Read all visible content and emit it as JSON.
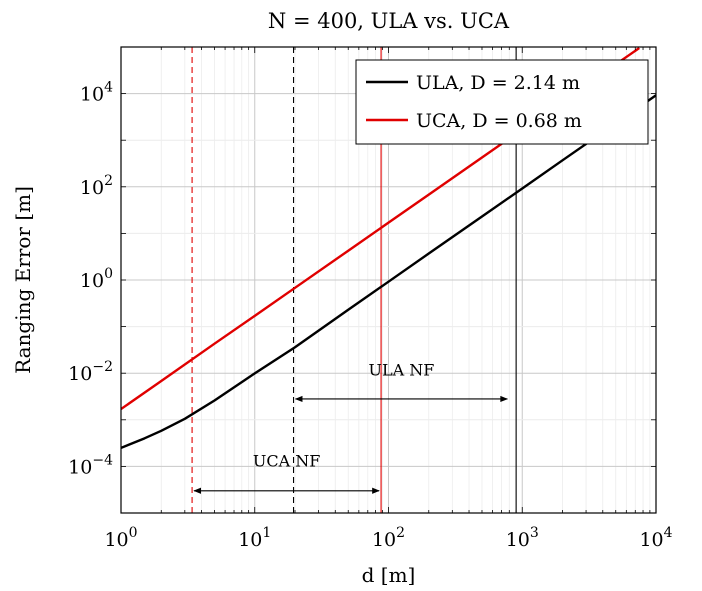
{
  "chart_data": {
    "type": "line",
    "title": "N = 400, ULA vs. UCA",
    "xlabel": "d [m]",
    "ylabel": "Ranging Error [m]",
    "x_scale": "log",
    "y_scale": "log",
    "xlim": [
      1,
      10000
    ],
    "ylim": [
      1e-05,
      100000
    ],
    "x_ticks": [
      {
        "value": 1,
        "base": "10",
        "exp": "0"
      },
      {
        "value": 10,
        "base": "10",
        "exp": "1"
      },
      {
        "value": 100,
        "base": "10",
        "exp": "2"
      },
      {
        "value": 1000,
        "base": "10",
        "exp": "3"
      },
      {
        "value": 10000,
        "base": "10",
        "exp": "4"
      }
    ],
    "y_ticks": [
      {
        "value": 0.0001,
        "base": "10",
        "exp": "−4"
      },
      {
        "value": 0.01,
        "base": "10",
        "exp": "−2"
      },
      {
        "value": 1,
        "base": "10",
        "exp": "0"
      },
      {
        "value": 100,
        "base": "10",
        "exp": "2"
      },
      {
        "value": 10000,
        "base": "10",
        "exp": "4"
      }
    ],
    "grid": true,
    "legend_position": "top-right",
    "series": [
      {
        "name": "ULA, D = 2.14 m",
        "color": "#000000",
        "x": [
          1,
          1.5,
          2,
          3,
          5,
          10,
          20,
          50,
          100,
          200,
          500,
          1000,
          2000,
          5000,
          10000
        ],
        "y": [
          0.00025,
          0.0004,
          0.00058,
          0.00105,
          0.0026,
          0.0099,
          0.036,
          0.23,
          0.92,
          3.7,
          23,
          92,
          370,
          2300,
          9200
        ]
      },
      {
        "name": "UCA, D = 0.68 m",
        "color": "#e00000",
        "x": [
          1,
          2,
          5,
          10,
          20,
          50,
          100,
          200,
          500,
          1000,
          2000,
          5000,
          7500
        ],
        "y": [
          0.0017,
          0.0068,
          0.043,
          0.17,
          0.68,
          4.25,
          17,
          68,
          425,
          1700,
          6800,
          42500,
          95000
        ]
      }
    ],
    "vertical_lines": [
      {
        "x": 3.4,
        "style": "dashed",
        "color": "#e00000"
      },
      {
        "x": 19.5,
        "style": "dashed",
        "color": "#000000"
      },
      {
        "x": 88,
        "style": "solid",
        "color": "#e00000"
      },
      {
        "x": 900,
        "style": "solid",
        "color": "#000000"
      }
    ],
    "annotations": [
      {
        "text": "ULA NF",
        "x_from": 19.5,
        "x_to": 800,
        "y": 0.0028,
        "label_y": 0.009
      },
      {
        "text": "UCA NF",
        "x_from": 3.4,
        "x_to": 88,
        "y": 3e-05,
        "label_y": 0.0001
      }
    ]
  }
}
